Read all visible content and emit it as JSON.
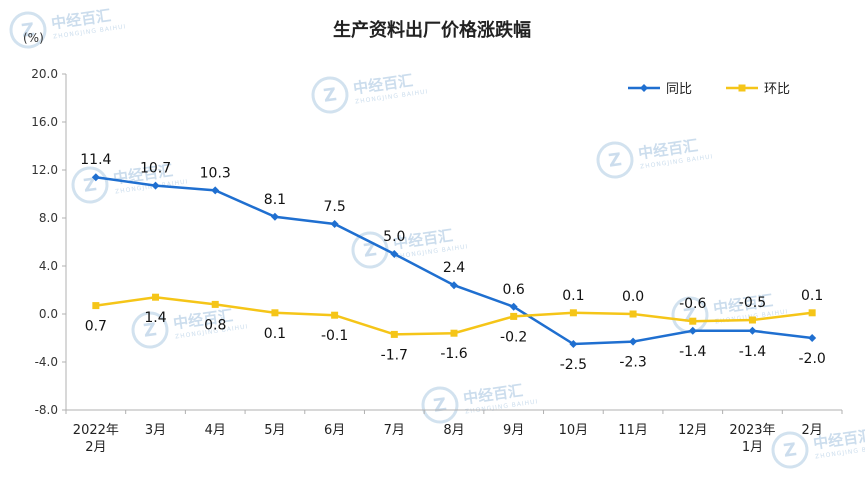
{
  "chart_data": {
    "type": "line",
    "title": "生产资料出厂价格涨跌幅",
    "unit_label": "(%)",
    "categories": [
      [
        "2022年",
        "2月"
      ],
      [
        "3月"
      ],
      [
        "4月"
      ],
      [
        "5月"
      ],
      [
        "6月"
      ],
      [
        "7月"
      ],
      [
        "8月"
      ],
      [
        "9月"
      ],
      [
        "10月"
      ],
      [
        "11月"
      ],
      [
        "12月"
      ],
      [
        "2023年",
        "1月"
      ],
      [
        "2月"
      ]
    ],
    "series": [
      {
        "name": "同比",
        "color": "#1f6fd0",
        "marker": "diamond",
        "values": [
          11.4,
          10.7,
          10.3,
          8.1,
          7.5,
          5.0,
          2.4,
          0.6,
          -2.5,
          -2.3,
          -1.4,
          -1.4,
          -2.0
        ],
        "labels": [
          "11.4",
          "10.7",
          "10.3",
          "8.1",
          "7.5",
          "5.0",
          "2.4",
          "0.6",
          "-2.5",
          "-2.3",
          "-1.4",
          "-1.4",
          "-2.0"
        ]
      },
      {
        "name": "环比",
        "color": "#f5c518",
        "marker": "square",
        "values": [
          0.7,
          1.4,
          0.8,
          0.1,
          -0.1,
          -1.7,
          -1.6,
          -0.2,
          0.1,
          0.0,
          -0.6,
          -0.5,
          0.1
        ],
        "labels": [
          "0.7",
          "1.4",
          "0.8",
          "0.1",
          "-0.1",
          "-1.7",
          "-1.6",
          "-0.2",
          "0.1",
          "0.0",
          "-0.6",
          "-0.5",
          "0.1"
        ]
      }
    ],
    "ylim": [
      -8.0,
      20.0
    ],
    "yticks": [
      "20.0",
      "16.0",
      "12.0",
      "8.0",
      "4.0",
      "0.0",
      "-4.0",
      "-8.0"
    ],
    "ytick_values": [
      20,
      16,
      12,
      8,
      4,
      0,
      -4,
      -8
    ],
    "legend_position": "top-right",
    "grid": false
  },
  "watermark": {
    "text": "中经百汇",
    "sub": "ZHONGJING BAIHUI",
    "icon": "zj-logo-icon"
  }
}
